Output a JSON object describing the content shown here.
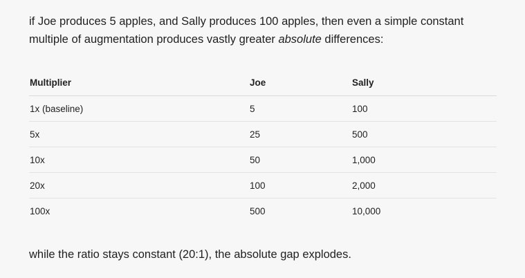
{
  "intro": {
    "before": "if Joe produces 5 apples, and Sally produces 100 apples, then even a simple constant multiple of augmentation produces vastly greater ",
    "emphasis": "absolute",
    "after": " differences:"
  },
  "table": {
    "headers": [
      "Multiplier",
      "Joe",
      "Sally"
    ],
    "rows": [
      [
        "1x (baseline)",
        "5",
        "100"
      ],
      [
        "5x",
        "25",
        "500"
      ],
      [
        "10x",
        "50",
        "1,000"
      ],
      [
        "20x",
        "100",
        "2,000"
      ],
      [
        "100x",
        "500",
        "10,000"
      ]
    ]
  },
  "outro": "while the ratio stays constant (20:1), the absolute gap explodes."
}
